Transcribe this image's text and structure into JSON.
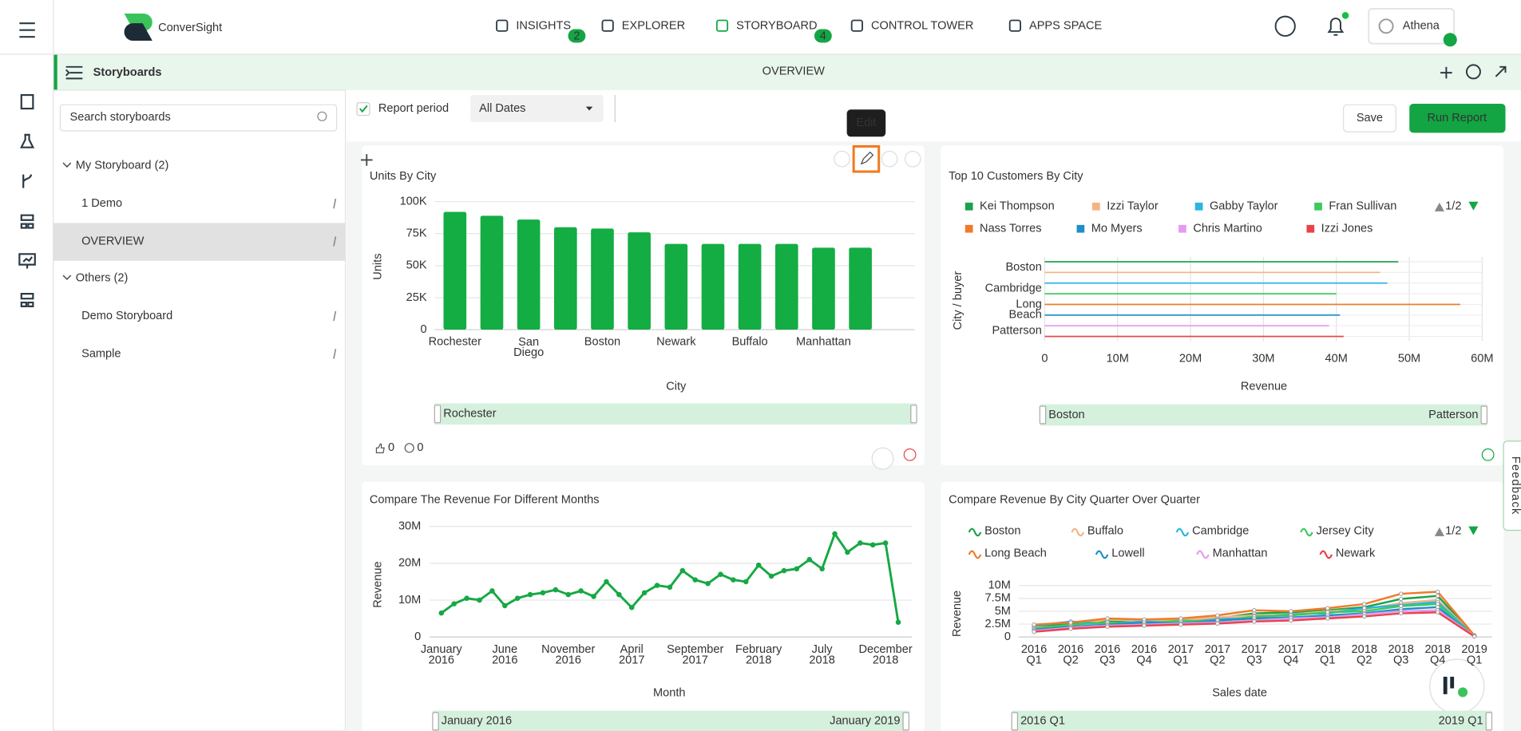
{
  "nav": {
    "brand": "ConverSight",
    "tabs": [
      {
        "label": "INSIGHTS",
        "badge": 2
      },
      {
        "label": "EXPLORER"
      },
      {
        "label": "STORYBOARD",
        "badge": 4,
        "active": true
      },
      {
        "label": "CONTROL TOWER"
      },
      {
        "label": "APPS SPACE"
      }
    ],
    "user": "Athena"
  },
  "toolbar": {
    "section": "Storyboards",
    "title": "OVERVIEW"
  },
  "sidebar": {
    "search_placeholder": "Search storyboards",
    "groups": [
      {
        "label": "My Storyboard (2)",
        "items": [
          "1 Demo",
          "OVERVIEW"
        ]
      },
      {
        "label": "Others (2)",
        "items": [
          "Demo Storyboard",
          "Sample"
        ]
      }
    ]
  },
  "filter": {
    "label": "Report period",
    "value": "All Dates",
    "save": "Save",
    "run": "Run Report"
  },
  "tooltip": "Edit",
  "feedback": "Feedback",
  "chart_data": [
    {
      "type": "bar",
      "title": "Units By City",
      "color": "#13ad43",
      "xlabel": "City",
      "ylabel": "Units",
      "categories": [
        "Rochester",
        null,
        "San Diego",
        null,
        "Boston",
        null,
        "Newark",
        null,
        "Buffalo",
        null,
        "Manhattan",
        null
      ],
      "values": [
        92000,
        89000,
        86000,
        80000,
        79000,
        76000,
        67000,
        67000,
        67000,
        67000,
        64000,
        64000
      ],
      "ylim": [
        0,
        100000
      ],
      "yticks": [
        0,
        {
          "value": 25000,
          "label": "25K"
        },
        {
          "value": 50000,
          "label": "50K"
        },
        {
          "value": 75000,
          "label": "75K"
        },
        {
          "value": 100000,
          "label": "100K"
        }
      ],
      "grid": true,
      "slider": {
        "start": "Rochester"
      },
      "likes": 0,
      "comments": 0
    },
    {
      "type": "hbar",
      "title": "Top 10 Customers By City",
      "xlabel": "Revenue",
      "ylabel": "City / buyer",
      "legend_marker": "square",
      "legend_page": "1/2",
      "categories": [
        "Boston",
        "Cambridge",
        "Long Beach",
        "Patterson"
      ],
      "series": [
        {
          "name": "Kei Thompson",
          "color": "#1aa34a",
          "values": [
            48500000,
            null,
            null,
            null
          ]
        },
        {
          "name": "Izzi Taylor",
          "color": "#f5b384",
          "values": [
            46000000,
            null,
            null,
            null
          ]
        },
        {
          "name": "Gabby Taylor",
          "color": "#2bb5e0",
          "values": [
            null,
            47000000,
            null,
            null
          ]
        },
        {
          "name": "Fran Sullivan",
          "color": "#3dc95d",
          "values": [
            null,
            40000000,
            null,
            null
          ]
        },
        {
          "name": "Nass Torres",
          "color": "#f07a2a",
          "values": [
            null,
            null,
            57000000,
            null
          ]
        },
        {
          "name": "Mo Myers",
          "color": "#1f8fc9",
          "values": [
            null,
            null,
            40500000,
            null
          ]
        },
        {
          "name": "Chris Martino",
          "color": "#e49bf0",
          "values": [
            null,
            null,
            39000000,
            null
          ]
        },
        {
          "name": "Izzi Jones",
          "color": "#e8434b",
          "values": [
            null,
            null,
            null,
            41000000
          ]
        }
      ],
      "xlim": [
        0,
        60000000
      ],
      "xticks": [
        0,
        {
          "value": 10000000,
          "label": "10M"
        },
        {
          "value": 20000000,
          "label": "20M"
        },
        {
          "value": 30000000,
          "label": "30M"
        },
        {
          "value": 40000000,
          "label": "40M"
        },
        {
          "value": 50000000,
          "label": "50M"
        },
        {
          "value": 60000000,
          "label": "60M"
        }
      ],
      "grid": true,
      "slider": {
        "start": "Boston",
        "end": "Patterson"
      }
    },
    {
      "type": "line",
      "title": "Compare The Revenue For Different Months",
      "color": "#17a844",
      "xlabel": "Month",
      "ylabel": "Revenue",
      "categories": [
        "January 2016",
        null,
        null,
        null,
        null,
        "June 2016",
        null,
        null,
        null,
        null,
        "November 2016",
        null,
        null,
        null,
        null,
        "April 2017",
        null,
        null,
        null,
        null,
        "September 2017",
        null,
        null,
        null,
        null,
        "February 2018",
        null,
        null,
        null,
        null,
        "July 2018",
        null,
        null,
        null,
        null,
        "December 2018",
        null
      ],
      "values": [
        6500000,
        9000000,
        10500000,
        10000000,
        12500000,
        8500000,
        10500000,
        11500000,
        12000000,
        12800000,
        11500000,
        12500000,
        11000000,
        15000000,
        11500000,
        8000000,
        12000000,
        14000000,
        13500000,
        18000000,
        15500000,
        14500000,
        17000000,
        15500000,
        15000000,
        19500000,
        16500000,
        18000000,
        18500000,
        21000000,
        18500000,
        28000000,
        23000000,
        25500000,
        25000000,
        25500000,
        4000000
      ],
      "ylim": [
        0,
        30000000
      ],
      "yticks": [
        0,
        {
          "value": 10000000,
          "label": "10M"
        },
        {
          "value": 20000000,
          "label": "20M"
        },
        {
          "value": 30000000,
          "label": "30M"
        }
      ],
      "grid": true,
      "slider": {
        "start": "January 2016",
        "end": "January 2019"
      }
    },
    {
      "type": "line",
      "title": "Compare Revenue By City Quarter Over Quarter",
      "xlabel": "Sales date",
      "ylabel": "Revenue",
      "legend_marker": "line",
      "legend_page": "1/2",
      "categories": [
        "2016 Q1",
        "2016 Q2",
        "2016 Q3",
        "2016 Q4",
        "2017 Q1",
        "2017 Q2",
        "2017 Q3",
        "2017 Q4",
        "2018 Q1",
        "2018 Q2",
        "2018 Q3",
        "2018 Q4",
        "2019 Q1"
      ],
      "series": [
        {
          "name": "Boston",
          "color": "#1aa34a",
          "values": [
            2000000,
            2600000,
            3000000,
            2800000,
            3000000,
            3600000,
            4600000,
            4800000,
            5200000,
            5800000,
            7400000,
            8000000,
            200000
          ]
        },
        {
          "name": "Buffalo",
          "color": "#f5b384",
          "values": [
            1800000,
            2200000,
            3400000,
            3200000,
            3200000,
            3800000,
            4200000,
            4400000,
            5000000,
            5400000,
            6600000,
            7200000,
            300000
          ]
        },
        {
          "name": "Cambridge",
          "color": "#2bb5e0",
          "values": [
            2200000,
            3000000,
            2600000,
            3000000,
            2800000,
            3400000,
            3800000,
            4400000,
            4600000,
            5600000,
            6200000,
            6800000,
            200000
          ]
        },
        {
          "name": "Jersey City",
          "color": "#3dc95d",
          "values": [
            1600000,
            2400000,
            2800000,
            2600000,
            3200000,
            3000000,
            4000000,
            4200000,
            4800000,
            5000000,
            6000000,
            6400000,
            100000
          ]
        },
        {
          "name": "Long Beach",
          "color": "#f07a2a",
          "values": [
            2400000,
            2800000,
            3600000,
            3400000,
            3600000,
            4200000,
            5200000,
            5000000,
            5600000,
            6400000,
            8400000,
            8800000,
            300000
          ]
        },
        {
          "name": "Lowell",
          "color": "#1f8fc9",
          "values": [
            1400000,
            2000000,
            2400000,
            2800000,
            2600000,
            3200000,
            3600000,
            3800000,
            4200000,
            4600000,
            5400000,
            5800000,
            100000
          ]
        },
        {
          "name": "Manhattan",
          "color": "#e49bf0",
          "values": [
            1200000,
            1800000,
            2200000,
            2400000,
            2600000,
            2800000,
            3200000,
            3600000,
            3800000,
            4400000,
            5000000,
            5200000,
            200000
          ]
        },
        {
          "name": "Newark",
          "color": "#e8434b",
          "values": [
            1000000,
            1600000,
            2000000,
            2200000,
            2400000,
            2600000,
            3000000,
            3200000,
            3600000,
            4000000,
            4600000,
            4800000,
            100000
          ]
        }
      ],
      "ylim": [
        0,
        10000000
      ],
      "yticks": [
        0,
        {
          "value": 2500000,
          "label": "2.5M"
        },
        {
          "value": 5000000,
          "label": "5M"
        },
        {
          "value": 7500000,
          "label": "7.5M"
        },
        {
          "value": 10000000,
          "label": "10M"
        }
      ],
      "grid": true,
      "slider": {
        "start": "2016 Q1",
        "end": "2019 Q1"
      }
    }
  ]
}
